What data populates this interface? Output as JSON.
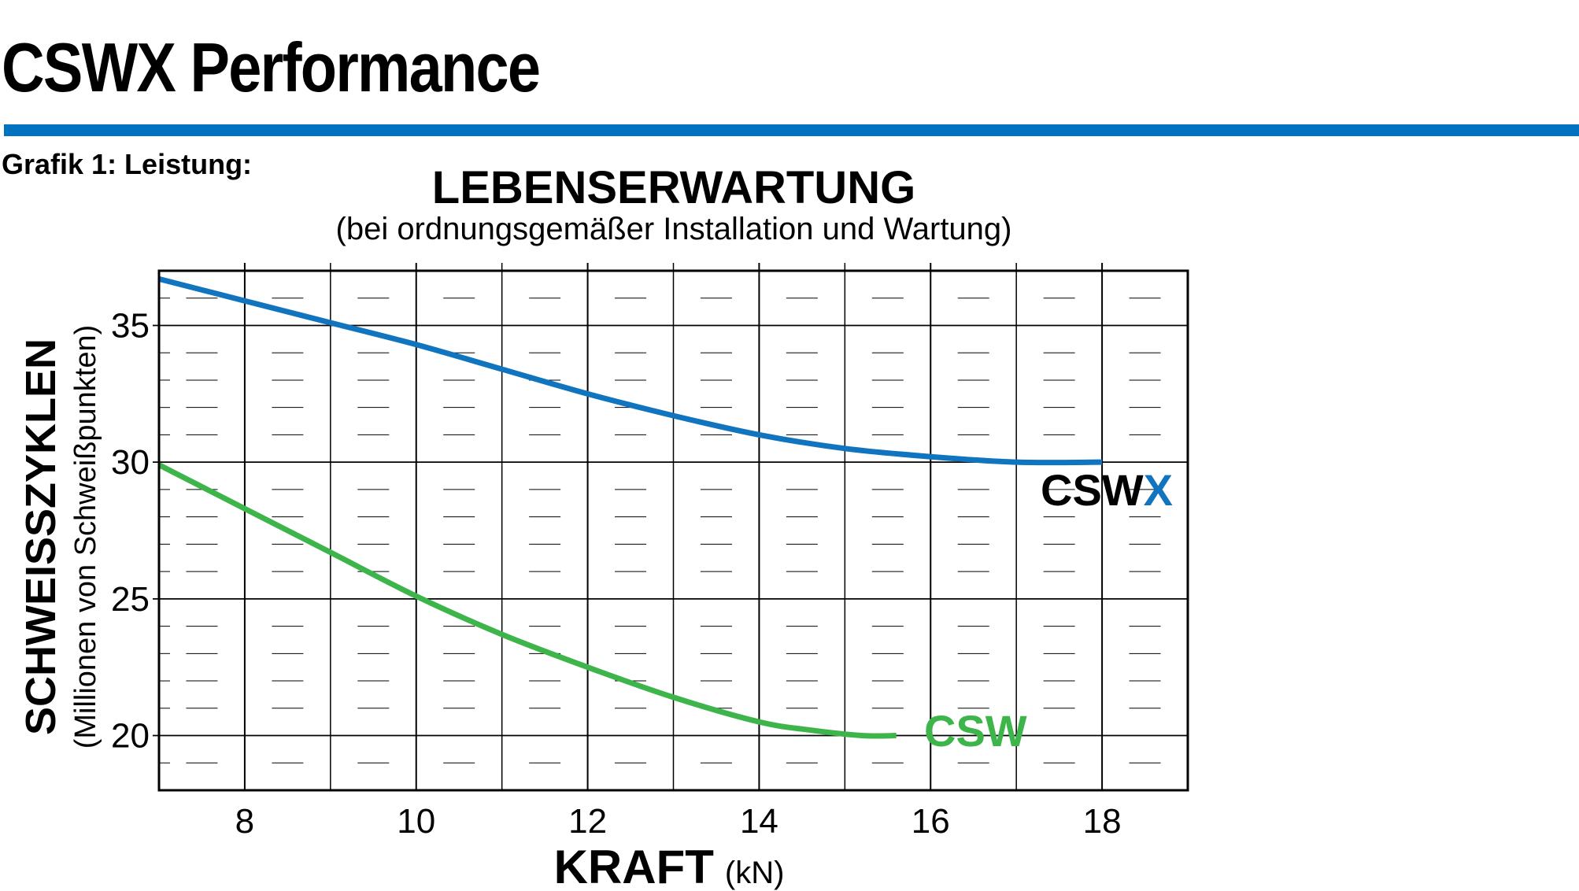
{
  "page": {
    "title": "CSWX Performance",
    "caption": "Grafik 1: Leistung:"
  },
  "colors": {
    "rule": "#0073c0",
    "cswx": "#1074be",
    "csw": "#3db54a"
  },
  "chart_data": {
    "type": "line",
    "title": "LEBENSERWARTUNG",
    "subtitle": "(bei ordnungsgemäßer Installation und Wartung)",
    "xlabel": "KRAFT",
    "xlabel_unit": "(kN)",
    "ylabel": "SCHWEISSZYKLEN",
    "ylabel_sub": "(Millionen von Schweißpunkten)",
    "xlim": [
      7,
      19
    ],
    "ylim": [
      18,
      37
    ],
    "xticks": [
      8,
      10,
      12,
      14,
      16,
      18
    ],
    "yticks": [
      20,
      25,
      30,
      35
    ],
    "grid": true,
    "series": [
      {
        "name": "CSWX",
        "name_prefix": "CSW",
        "name_suffix": "X",
        "x": [
          7,
          8,
          9,
          10,
          11,
          12,
          13,
          14,
          15,
          16,
          17,
          18
        ],
        "y": [
          36.7,
          35.9,
          35.1,
          34.3,
          33.4,
          32.5,
          31.7,
          31.0,
          30.5,
          30.2,
          30.0,
          30.0
        ]
      },
      {
        "name": "CSW",
        "x": [
          7,
          8,
          9,
          10,
          11,
          12,
          13,
          14,
          14.6,
          15.2,
          15.6
        ],
        "y": [
          29.9,
          28.3,
          26.7,
          25.1,
          23.7,
          22.5,
          21.4,
          20.5,
          20.2,
          20.0,
          20.0
        ]
      }
    ]
  }
}
